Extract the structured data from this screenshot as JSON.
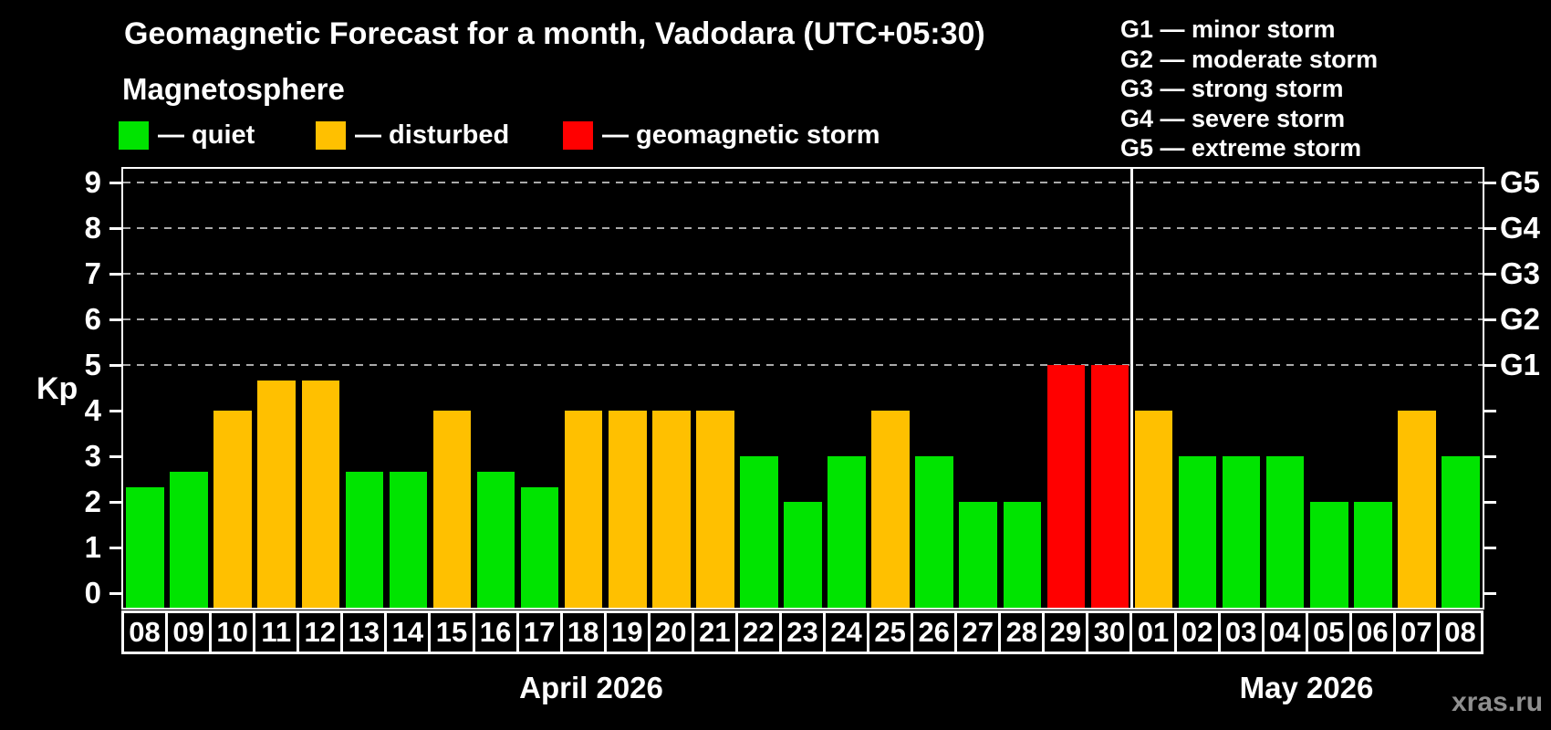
{
  "title": "Geomagnetic Forecast for a month, Vadodara (UTC+05:30)",
  "subtitle": "Magnetosphere",
  "condition_legend": {
    "items": [
      {
        "name": "quiet",
        "label": "— quiet",
        "color": "#00e400"
      },
      {
        "name": "disturbed",
        "label": "— disturbed",
        "color": "#ffc000"
      },
      {
        "name": "storm",
        "label": "— geomagnetic storm",
        "color": "#ff0000"
      }
    ]
  },
  "storm_scale_legend": [
    "G1 — minor storm",
    "G2 — moderate storm",
    "G3 — strong storm",
    "G4 — severe storm",
    "G5 — extreme storm"
  ],
  "watermark": "xras.ru",
  "chart_data": {
    "type": "bar",
    "ylabel": "Kp",
    "ylim": [
      0,
      9
    ],
    "yticks": [
      0,
      1,
      2,
      3,
      4,
      5,
      6,
      7,
      8,
      9
    ],
    "gridlines_at_kp": [
      5,
      6,
      7,
      8,
      9
    ],
    "grid_style": "dashed",
    "right_axis_labels": [
      {
        "kp": 5,
        "label": "G1"
      },
      {
        "kp": 6,
        "label": "G2"
      },
      {
        "kp": 7,
        "label": "G3"
      },
      {
        "kp": 8,
        "label": "G4"
      },
      {
        "kp": 9,
        "label": "G5"
      }
    ],
    "status_colors": {
      "quiet": "#00e400",
      "disturbed": "#ffc000",
      "storm": "#ff0000"
    },
    "months": [
      {
        "label": "April 2026",
        "bars": [
          {
            "day": "08",
            "kp": 2.33,
            "status": "quiet"
          },
          {
            "day": "09",
            "kp": 2.67,
            "status": "quiet"
          },
          {
            "day": "10",
            "kp": 4.0,
            "status": "disturbed"
          },
          {
            "day": "11",
            "kp": 4.67,
            "status": "disturbed"
          },
          {
            "day": "12",
            "kp": 4.67,
            "status": "disturbed"
          },
          {
            "day": "13",
            "kp": 2.67,
            "status": "quiet"
          },
          {
            "day": "14",
            "kp": 2.67,
            "status": "quiet"
          },
          {
            "day": "15",
            "kp": 4.0,
            "status": "disturbed"
          },
          {
            "day": "16",
            "kp": 2.67,
            "status": "quiet"
          },
          {
            "day": "17",
            "kp": 2.33,
            "status": "quiet"
          },
          {
            "day": "18",
            "kp": 4.0,
            "status": "disturbed"
          },
          {
            "day": "19",
            "kp": 4.0,
            "status": "disturbed"
          },
          {
            "day": "20",
            "kp": 4.0,
            "status": "disturbed"
          },
          {
            "day": "21",
            "kp": 4.0,
            "status": "disturbed"
          },
          {
            "day": "22",
            "kp": 3.0,
            "status": "quiet"
          },
          {
            "day": "23",
            "kp": 2.0,
            "status": "quiet"
          },
          {
            "day": "24",
            "kp": 3.0,
            "status": "quiet"
          },
          {
            "day": "25",
            "kp": 4.0,
            "status": "disturbed"
          },
          {
            "day": "26",
            "kp": 3.0,
            "status": "quiet"
          },
          {
            "day": "27",
            "kp": 2.0,
            "status": "quiet"
          },
          {
            "day": "28",
            "kp": 2.0,
            "status": "quiet"
          },
          {
            "day": "29",
            "kp": 5.0,
            "status": "storm"
          },
          {
            "day": "30",
            "kp": 5.0,
            "status": "storm"
          }
        ]
      },
      {
        "label": "May 2026",
        "bars": [
          {
            "day": "01",
            "kp": 4.0,
            "status": "disturbed"
          },
          {
            "day": "02",
            "kp": 3.0,
            "status": "quiet"
          },
          {
            "day": "03",
            "kp": 3.0,
            "status": "quiet"
          },
          {
            "day": "04",
            "kp": 3.0,
            "status": "quiet"
          },
          {
            "day": "05",
            "kp": 2.0,
            "status": "quiet"
          },
          {
            "day": "06",
            "kp": 2.0,
            "status": "quiet"
          },
          {
            "day": "07",
            "kp": 4.0,
            "status": "disturbed"
          },
          {
            "day": "08",
            "kp": 3.0,
            "status": "quiet"
          }
        ]
      }
    ]
  }
}
